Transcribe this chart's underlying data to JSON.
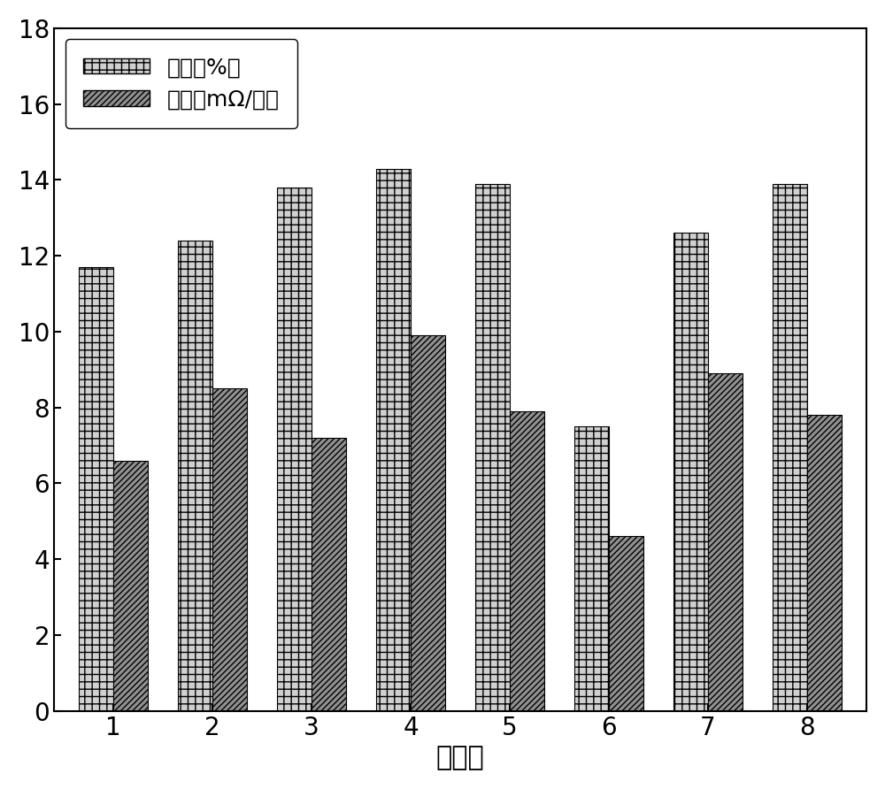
{
  "categories": [
    "1",
    "2",
    "3",
    "4",
    "5",
    "6",
    "7",
    "8"
  ],
  "weight_loss": [
    11.7,
    12.4,
    13.8,
    14.3,
    13.9,
    7.5,
    12.6,
    13.9
  ],
  "sheet_resistance": [
    6.6,
    8.5,
    7.2,
    9.9,
    7.9,
    4.6,
    8.9,
    7.8
  ],
  "legend_label1": "失重（%）",
  "legend_label2": "方阵（mΩ/口）",
  "xlabel": "对比例",
  "ylim": [
    0,
    18
  ],
  "yticks": [
    0,
    2,
    4,
    6,
    8,
    10,
    12,
    14,
    16,
    18
  ],
  "bar_width": 0.35,
  "color_light": "#d0d0d0",
  "color_dark": "#909090",
  "figsize": [
    10.0,
    8.92
  ],
  "dpi": 100,
  "label_fontsize": 22,
  "tick_fontsize": 20,
  "legend_fontsize": 18
}
